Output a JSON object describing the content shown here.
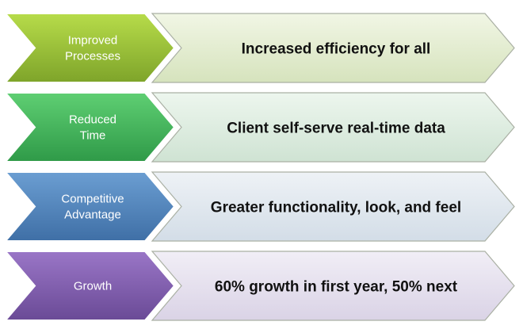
{
  "rows": [
    {
      "label_lines": [
        "Improved",
        "Processes"
      ],
      "description": "Increased efficiency for all",
      "chevron_colors": {
        "light": "#b7dc4a",
        "dark": "#7ea42a"
      },
      "panel_colors": {
        "light": "#f1f6e5",
        "dark": "#d6e3bd"
      }
    },
    {
      "label_lines": [
        "Reduced",
        "Time"
      ],
      "description": "Client self-serve real-time data",
      "chevron_colors": {
        "light": "#5fcf73",
        "dark": "#2f9a48"
      },
      "panel_colors": {
        "light": "#edf6ee",
        "dark": "#cfe3d3"
      }
    },
    {
      "label_lines": [
        "Competitive",
        "Advantage"
      ],
      "description": "Greater functionality, look, and feel",
      "chevron_colors": {
        "light": "#6b9ed2",
        "dark": "#3f6fa6"
      },
      "panel_colors": {
        "light": "#eef2f6",
        "dark": "#d3dde7"
      }
    },
    {
      "label_lines": [
        "Growth"
      ],
      "description": "60% growth in first year, 50% next",
      "chevron_colors": {
        "light": "#9a76c7",
        "dark": "#6a4a96"
      },
      "panel_colors": {
        "light": "#f1eef6",
        "dark": "#dad3e6"
      }
    }
  ]
}
